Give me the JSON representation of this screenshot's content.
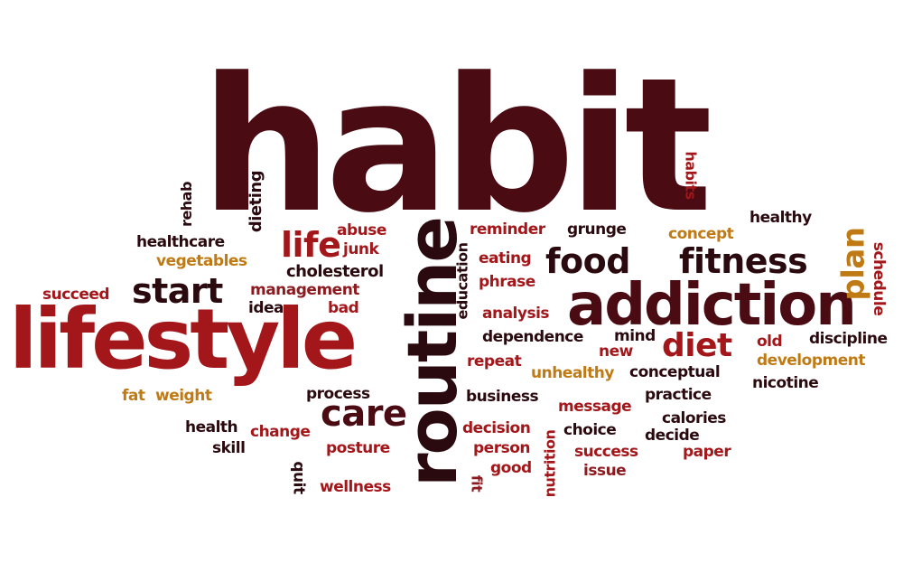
{
  "colors": {
    "maroon": "#4a0b13",
    "dark": "#2a0a0e",
    "red": "#a3161a",
    "crimson": "#8c1b20",
    "orange": "#c07a14",
    "brown": "#6e1417"
  },
  "words": {
    "habit": "habit",
    "lifestyle": "lifestyle",
    "routine": "routine",
    "addiction": "addiction",
    "food": "food",
    "fitness": "fitness",
    "start": "start",
    "care": "care",
    "diet": "diet",
    "life": "life",
    "plan": "plan",
    "rehab": "rehab",
    "dieting": "dieting",
    "habits": "habits",
    "healthcare": "healthcare",
    "vegetables": "vegetables",
    "abuse": "abuse",
    "junk": "junk",
    "cholesterol": "cholesterol",
    "succeed": "succeed",
    "management": "management",
    "idea": "idea",
    "bad": "bad",
    "reminder": "reminder",
    "grunge": "grunge",
    "concept": "concept",
    "healthy": "healthy",
    "schedule": "schedule",
    "eating": "eating",
    "education": "education",
    "phrase": "phrase",
    "analysis": "analysis",
    "dependence": "dependence",
    "mind": "mind",
    "new": "new",
    "old": "old",
    "discipline": "discipline",
    "development": "development",
    "repeat": "repeat",
    "unhealthy": "unhealthy",
    "conceptual": "conceptual",
    "nicotine": "nicotine",
    "process": "process",
    "business": "business",
    "practice": "practice",
    "fat": "fat",
    "weight": "weight",
    "message": "message",
    "calories": "calories",
    "health": "health",
    "change": "change",
    "decision": "decision",
    "choice": "choice",
    "decide": "decide",
    "skill": "skill",
    "posture": "posture",
    "person": "person",
    "success": "success",
    "paper": "paper",
    "quit": "quit",
    "fit": "fit",
    "good": "good",
    "nutrition": "nutrition",
    "issue": "issue",
    "wellness": "wellness"
  }
}
